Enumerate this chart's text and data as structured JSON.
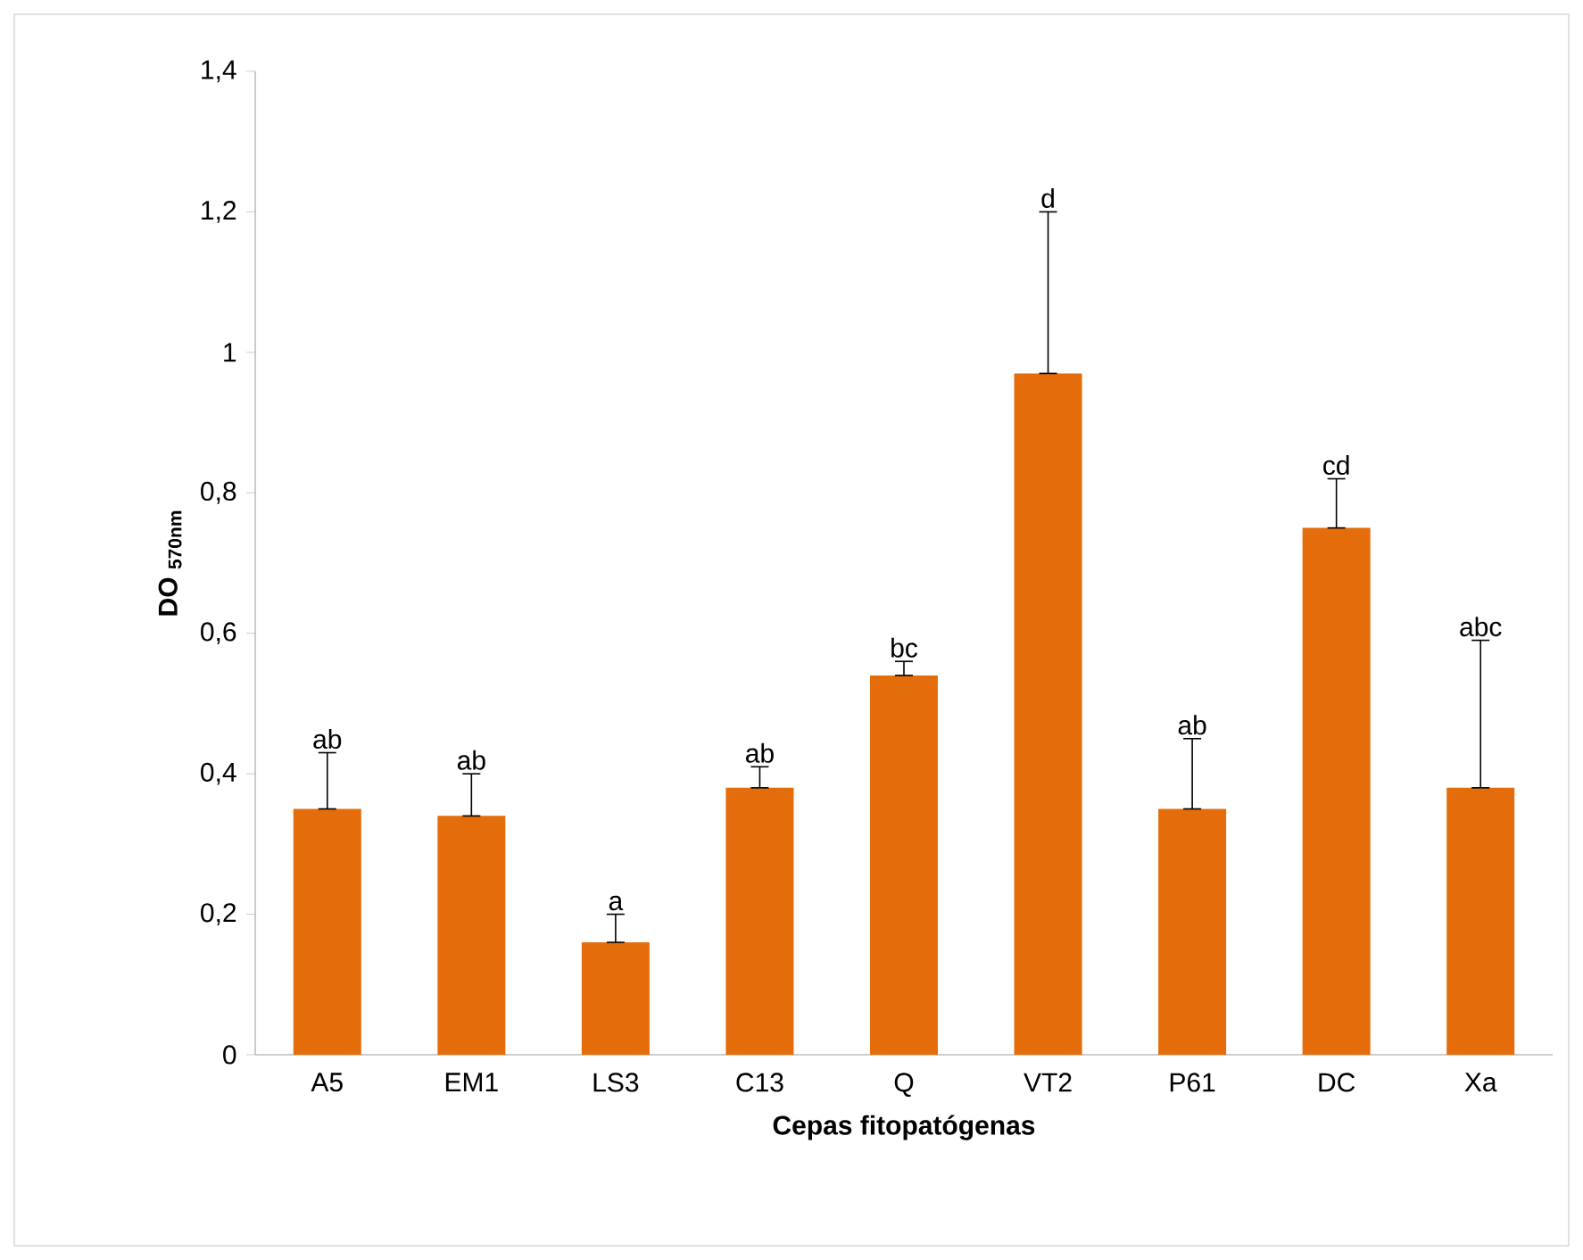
{
  "chart_data": {
    "type": "bar",
    "xlabel": "Cepas fitopatógenas",
    "ylabel": "DO $_{570nm}$",
    "categories": [
      "A5",
      "EM1",
      "LS3",
      "C13",
      "Q",
      "VT2",
      "P61",
      "DC",
      "Xa"
    ],
    "values": [
      0.35,
      0.34,
      0.16,
      0.38,
      0.54,
      0.97,
      0.35,
      0.75,
      0.38
    ],
    "errors": [
      [
        0.35,
        0.43
      ],
      [
        0.34,
        0.4
      ],
      [
        0.16,
        0.2
      ],
      [
        0.38,
        0.41
      ],
      [
        0.54,
        0.56
      ],
      [
        0.97,
        1.2
      ],
      [
        0.35,
        0.45
      ],
      [
        0.75,
        0.82
      ],
      [
        0.38,
        0.59
      ]
    ],
    "color": "#e46c0a",
    "ylim": [
      0,
      1.4
    ],
    "yticks": [
      0,
      {
        "value": 0.2,
        "label": "0,2"
      },
      {
        "value": 0.4,
        "label": "0,4"
      },
      {
        "value": 0.6,
        "label": "0,6"
      },
      {
        "value": 0.8,
        "label": "0,8"
      },
      1,
      {
        "value": 1.2,
        "label": "1,2"
      },
      {
        "value": 1.4,
        "label": "1,4"
      }
    ],
    "annotations": [
      {
        "text": "ab",
        "x": "A5",
        "y": 0.43
      },
      {
        "text": "ab",
        "x": "EM1",
        "y": 0.4
      },
      {
        "text": "a",
        "x": "LS3",
        "y": 0.2
      },
      {
        "text": "ab",
        "x": "C13",
        "y": 0.41
      },
      {
        "text": "bc",
        "x": "Q",
        "y": 0.56
      },
      {
        "text": "d",
        "x": "VT2",
        "y": 1.2
      },
      {
        "text": "ab",
        "x": "P61",
        "y": 0.45
      },
      {
        "text": "cd",
        "x": "DC",
        "y": 0.82
      },
      {
        "text": "abc",
        "x": "Xa",
        "y": 0.59
      }
    ]
  }
}
